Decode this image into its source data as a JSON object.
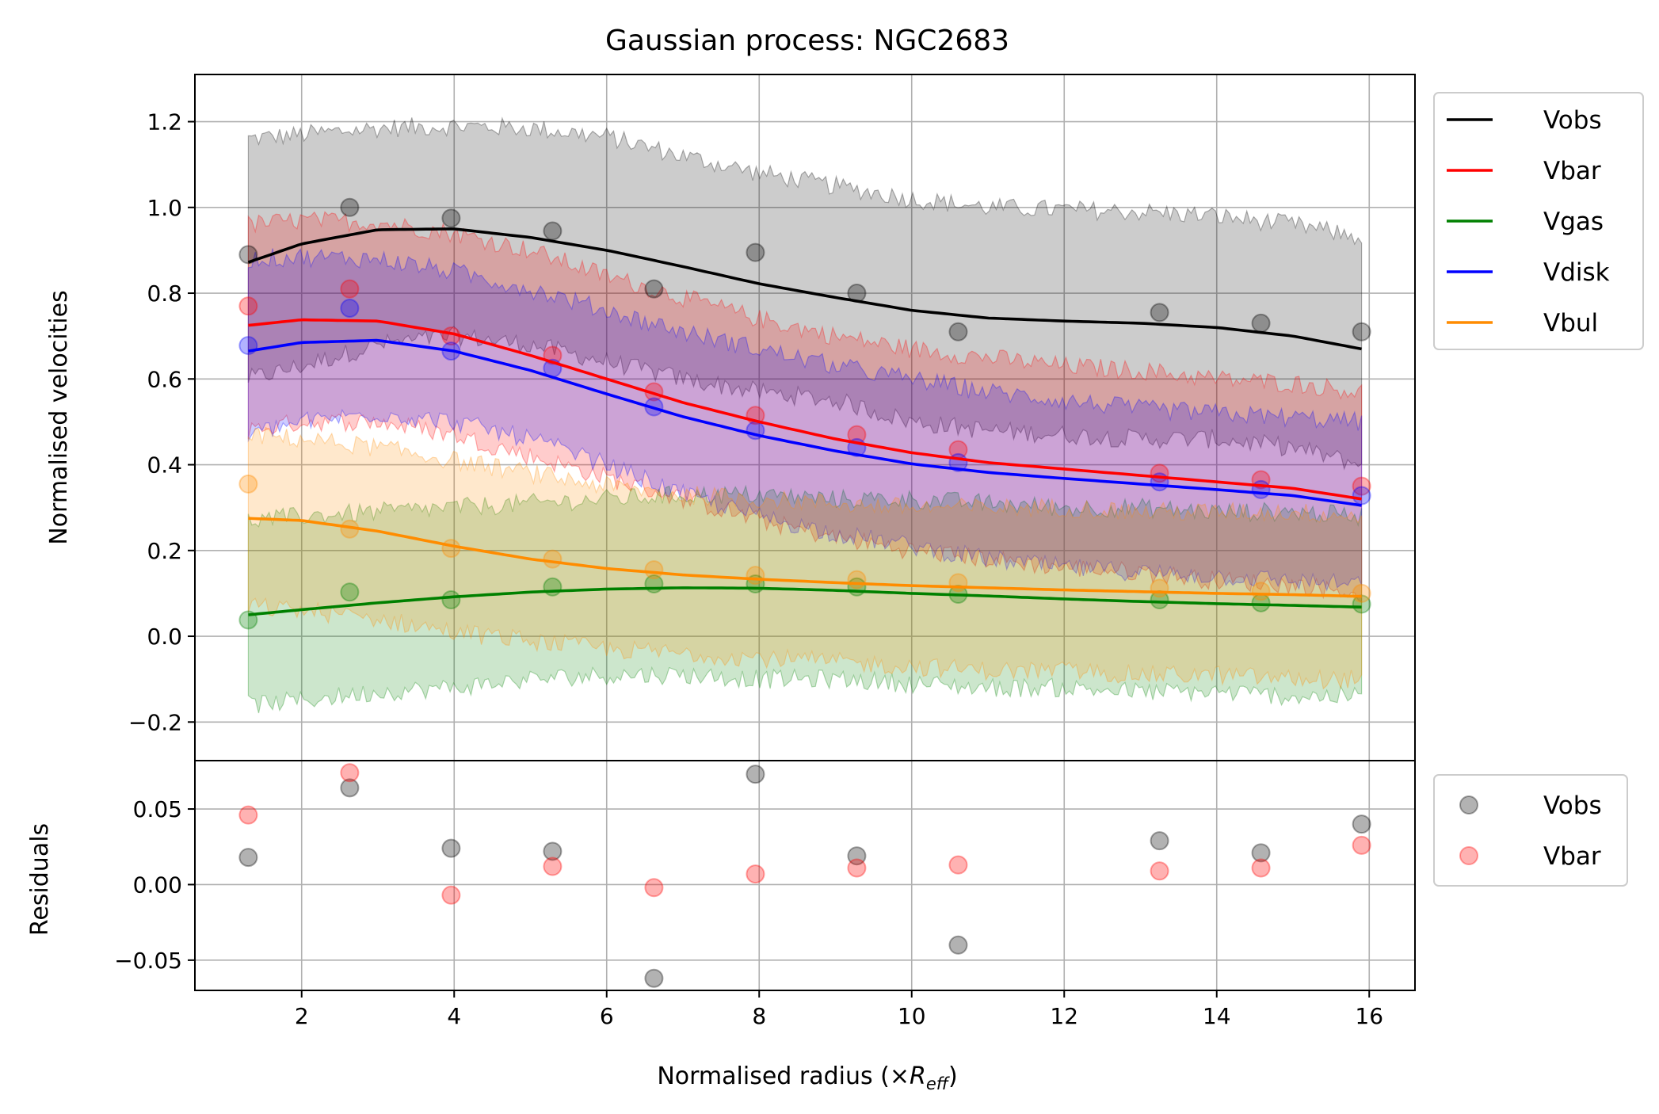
{
  "chart_data": {
    "type": "line",
    "title": "Gaussian process: NGC2683",
    "xlabel_main": "Normalised radius (×",
    "xlabel_sym": "R",
    "xlabel_sub": "eff",
    "xlabel_end": ")",
    "xlim": [
      0.6,
      16.6
    ],
    "x_ticks": [
      2,
      4,
      6,
      8,
      10,
      12,
      14,
      16
    ],
    "x_tick_labels": [
      "2",
      "4",
      "6",
      "8",
      "10",
      "12",
      "14",
      "16"
    ],
    "grid": true,
    "top_panel": {
      "ylabel": "Normalised velocities",
      "ylim": [
        -0.29,
        1.31
      ],
      "y_ticks": [
        -0.2,
        0.0,
        0.2,
        0.4,
        0.6,
        0.8,
        1.0,
        1.2
      ],
      "y_tick_labels": [
        "−0.2",
        "0.0",
        "0.2",
        "0.4",
        "0.6",
        "0.8",
        "1.0",
        "1.2"
      ],
      "legend_position": "outside-top-right",
      "series": [
        {
          "name": "Vobs",
          "color": "#000000",
          "points_x": [
            1.3,
            2.63,
            3.96,
            5.29,
            6.62,
            7.95,
            9.28,
            10.61,
            13.25,
            14.58,
            15.9
          ],
          "points_y": [
            0.89,
            1.0,
            0.975,
            0.945,
            0.81,
            0.895,
            0.8,
            0.71,
            0.755,
            0.73,
            0.71
          ],
          "curve_x": [
            1.3,
            2.0,
            3.0,
            4.0,
            5.0,
            6.0,
            7.0,
            8.0,
            9.0,
            10.0,
            11.0,
            12.0,
            13.0,
            14.0,
            15.0,
            15.9
          ],
          "curve_y": [
            0.872,
            0.915,
            0.948,
            0.95,
            0.93,
            0.9,
            0.862,
            0.822,
            0.79,
            0.76,
            0.742,
            0.735,
            0.73,
            0.72,
            0.7,
            0.67
          ],
          "band_upper": [
            1.16,
            1.17,
            1.185,
            1.19,
            1.185,
            1.165,
            1.12,
            1.08,
            1.05,
            1.02,
            1.0,
            0.995,
            0.99,
            0.98,
            0.96,
            0.93
          ],
          "band_lower": [
            0.6,
            0.63,
            0.68,
            0.7,
            0.68,
            0.64,
            0.6,
            0.57,
            0.55,
            0.5,
            0.48,
            0.47,
            0.46,
            0.46,
            0.44,
            0.4
          ]
        },
        {
          "name": "Vbar",
          "color": "#ff0000",
          "points_x": [
            1.3,
            2.63,
            3.96,
            5.29,
            6.62,
            7.95,
            9.28,
            10.61,
            13.25,
            14.58,
            15.9
          ],
          "points_y": [
            0.77,
            0.81,
            0.7,
            0.655,
            0.57,
            0.515,
            0.47,
            0.435,
            0.38,
            0.365,
            0.35
          ],
          "curve_x": [
            1.3,
            2.0,
            3.0,
            4.0,
            5.0,
            6.0,
            7.0,
            8.0,
            9.0,
            10.0,
            11.0,
            12.0,
            13.0,
            14.0,
            15.0,
            15.9
          ],
          "curve_y": [
            0.725,
            0.738,
            0.735,
            0.705,
            0.655,
            0.6,
            0.545,
            0.5,
            0.46,
            0.428,
            0.405,
            0.39,
            0.375,
            0.36,
            0.345,
            0.32
          ],
          "band_upper": [
            0.96,
            0.97,
            0.965,
            0.94,
            0.9,
            0.84,
            0.79,
            0.74,
            0.7,
            0.67,
            0.65,
            0.63,
            0.62,
            0.6,
            0.59,
            0.57
          ],
          "band_lower": [
            0.48,
            0.5,
            0.5,
            0.47,
            0.42,
            0.37,
            0.32,
            0.27,
            0.23,
            0.2,
            0.18,
            0.16,
            0.15,
            0.13,
            0.12,
            0.1
          ]
        },
        {
          "name": "Vgas",
          "color": "#008000",
          "points_x": [
            1.3,
            2.63,
            3.96,
            5.29,
            6.62,
            7.95,
            9.28,
            10.61,
            13.25,
            14.58,
            15.9
          ],
          "points_y": [
            0.038,
            0.103,
            0.085,
            0.115,
            0.122,
            0.122,
            0.115,
            0.098,
            0.085,
            0.078,
            0.075
          ],
          "curve_x": [
            1.3,
            2.0,
            3.0,
            4.0,
            5.0,
            6.0,
            7.0,
            8.0,
            9.0,
            10.0,
            11.0,
            12.0,
            13.0,
            14.0,
            15.0,
            15.9
          ],
          "curve_y": [
            0.05,
            0.062,
            0.078,
            0.092,
            0.103,
            0.11,
            0.113,
            0.112,
            0.107,
            0.1,
            0.094,
            0.087,
            0.081,
            0.076,
            0.072,
            0.068
          ],
          "band_upper": [
            0.27,
            0.28,
            0.29,
            0.3,
            0.31,
            0.32,
            0.33,
            0.33,
            0.32,
            0.32,
            0.31,
            0.3,
            0.3,
            0.29,
            0.29,
            0.28
          ],
          "band_lower": [
            -0.16,
            -0.15,
            -0.13,
            -0.12,
            -0.1,
            -0.09,
            -0.09,
            -0.1,
            -0.1,
            -0.11,
            -0.12,
            -0.12,
            -0.13,
            -0.13,
            -0.14,
            -0.14
          ]
        },
        {
          "name": "Vdisk",
          "color": "#0000ff",
          "points_x": [
            1.3,
            2.63,
            3.96,
            5.29,
            6.62,
            7.95,
            9.28,
            10.61,
            13.25,
            14.58,
            15.9
          ],
          "points_y": [
            0.678,
            0.765,
            0.665,
            0.625,
            0.535,
            0.48,
            0.44,
            0.405,
            0.36,
            0.342,
            0.328
          ],
          "curve_x": [
            1.3,
            2.0,
            3.0,
            4.0,
            5.0,
            6.0,
            7.0,
            8.0,
            9.0,
            10.0,
            11.0,
            12.0,
            13.0,
            14.0,
            15.0,
            15.9
          ],
          "curve_y": [
            0.665,
            0.685,
            0.69,
            0.665,
            0.62,
            0.565,
            0.512,
            0.468,
            0.432,
            0.402,
            0.382,
            0.368,
            0.355,
            0.342,
            0.328,
            0.305
          ],
          "band_upper": [
            0.88,
            0.885,
            0.88,
            0.85,
            0.81,
            0.76,
            0.71,
            0.67,
            0.63,
            0.6,
            0.57,
            0.55,
            0.53,
            0.52,
            0.51,
            0.5
          ],
          "band_lower": [
            0.47,
            0.5,
            0.52,
            0.5,
            0.46,
            0.4,
            0.33,
            0.28,
            0.24,
            0.21,
            0.18,
            0.16,
            0.15,
            0.14,
            0.13,
            0.12
          ]
        },
        {
          "name": "Vbul",
          "color": "#ff8c00",
          "points_x": [
            1.3,
            2.63,
            3.96,
            5.29,
            6.62,
            7.95,
            9.28,
            10.61,
            13.25,
            14.58,
            15.9
          ],
          "points_y": [
            0.355,
            0.25,
            0.205,
            0.18,
            0.155,
            0.142,
            0.132,
            0.125,
            0.112,
            0.105,
            0.1
          ],
          "curve_x": [
            1.3,
            2.0,
            3.0,
            4.0,
            5.0,
            6.0,
            7.0,
            8.0,
            9.0,
            10.0,
            11.0,
            12.0,
            13.0,
            14.0,
            15.0,
            15.9
          ],
          "curve_y": [
            0.275,
            0.27,
            0.245,
            0.21,
            0.18,
            0.158,
            0.143,
            0.133,
            0.125,
            0.118,
            0.113,
            0.108,
            0.104,
            0.1,
            0.097,
            0.093
          ],
          "band_upper": [
            0.47,
            0.46,
            0.44,
            0.41,
            0.38,
            0.35,
            0.33,
            0.32,
            0.31,
            0.3,
            0.3,
            0.3,
            0.29,
            0.29,
            0.29,
            0.28
          ],
          "band_lower": [
            0.07,
            0.06,
            0.04,
            0.01,
            -0.01,
            -0.03,
            -0.04,
            -0.05,
            -0.06,
            -0.07,
            -0.08,
            -0.08,
            -0.09,
            -0.09,
            -0.1,
            -0.1
          ]
        }
      ]
    },
    "bottom_panel": {
      "ylabel": "Residuals",
      "ylim": [
        -0.07,
        0.082
      ],
      "y_ticks": [
        -0.05,
        0.0,
        0.05
      ],
      "y_tick_labels": [
        "−0.05",
        "0.00",
        "0.05"
      ],
      "legend_position": "outside-top-right",
      "series": [
        {
          "name": "Vobs",
          "color": "#000000",
          "x": [
            1.3,
            2.63,
            3.96,
            5.29,
            6.62,
            7.95,
            9.28,
            10.61,
            13.25,
            14.58,
            15.9
          ],
          "y": [
            0.018,
            0.064,
            0.024,
            0.022,
            -0.062,
            0.073,
            0.019,
            -0.04,
            0.029,
            0.021,
            0.04
          ]
        },
        {
          "name": "Vbar",
          "color": "#ff0000",
          "x": [
            1.3,
            2.63,
            3.96,
            5.29,
            6.62,
            7.95,
            9.28,
            10.61,
            13.25,
            14.58,
            15.9
          ],
          "y": [
            0.046,
            0.074,
            -0.007,
            0.012,
            -0.002,
            0.007,
            0.011,
            0.013,
            0.009,
            0.011,
            0.026
          ]
        }
      ]
    }
  }
}
